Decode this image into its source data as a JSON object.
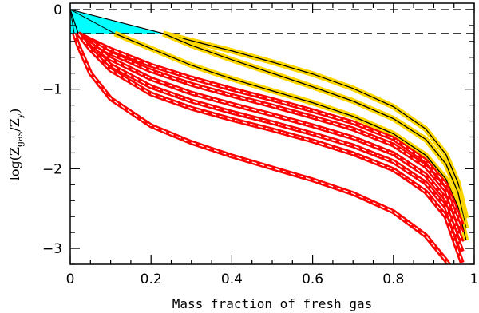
{
  "chart_data": {
    "type": "line",
    "xlabel": "Mass fraction of fresh gas",
    "ylabel": {
      "prefix": "log(Z",
      "sub1": "gas",
      "mid": "/Z",
      "sub2": "y",
      "suffix": ")"
    },
    "xlim": [
      0,
      1
    ],
    "ylim": [
      -3.2,
      0.08
    ],
    "xticks": [
      {
        "value": 0,
        "label": "0"
      },
      {
        "value": 0.2,
        "label": "0.2"
      },
      {
        "value": 0.4,
        "label": "0.4"
      },
      {
        "value": 0.6,
        "label": "0.6"
      },
      {
        "value": 0.8,
        "label": "0.8"
      },
      {
        "value": 1,
        "label": "1"
      }
    ],
    "yticks": [
      {
        "value": 0,
        "label": "0"
      },
      {
        "value": -1,
        "label": "−1"
      },
      {
        "value": -2,
        "label": "−2"
      },
      {
        "value": -3,
        "label": "−3"
      }
    ],
    "reference_lines": [
      0,
      -0.3
    ],
    "shaded_region": {
      "color": "#00ffff",
      "x_max": 0.23,
      "y_top": 0,
      "y_bottom": -0.3
    },
    "colors": {
      "red": "#ff0000",
      "yellow": "#ffd700",
      "cyan": "#00ffff",
      "core": "#ffffff"
    },
    "series": [
      {
        "color": "yellow",
        "x": [
          0.23,
          0.3,
          0.4,
          0.5,
          0.6,
          0.7,
          0.8,
          0.88,
          0.93,
          0.96,
          0.98
        ],
        "y": [
          -0.3,
          -0.39,
          -0.52,
          -0.66,
          -0.81,
          -0.99,
          -1.22,
          -1.5,
          -1.82,
          -2.18,
          -2.62
        ]
      },
      {
        "color": "yellow",
        "x": [
          0.23,
          0.3,
          0.4,
          0.5,
          0.6,
          0.7,
          0.8,
          0.88,
          0.93,
          0.96,
          0.98
        ],
        "y": [
          -0.3,
          -0.45,
          -0.63,
          -0.8,
          -0.97,
          -1.15,
          -1.37,
          -1.63,
          -1.94,
          -2.3,
          -2.75
        ]
      },
      {
        "color": "yellow",
        "x": [
          0.11,
          0.2,
          0.3,
          0.4,
          0.5,
          0.6,
          0.7,
          0.8,
          0.88,
          0.93,
          0.96,
          0.98
        ],
        "y": [
          -0.3,
          -0.49,
          -0.7,
          -0.87,
          -1.02,
          -1.17,
          -1.34,
          -1.56,
          -1.83,
          -2.13,
          -2.48,
          -2.9
        ]
      },
      {
        "color": "red",
        "x": [
          0.02,
          0.05,
          0.1,
          0.2,
          0.3,
          0.4,
          0.5,
          0.6,
          0.7,
          0.8,
          0.88,
          0.93,
          0.97
        ],
        "y": [
          -0.3,
          -0.38,
          -0.5,
          -0.7,
          -0.86,
          -1.0,
          -1.13,
          -1.27,
          -1.42,
          -1.62,
          -1.9,
          -2.2,
          -2.7
        ]
      },
      {
        "color": "red",
        "x": [
          0.02,
          0.05,
          0.1,
          0.2,
          0.3,
          0.4,
          0.5,
          0.6,
          0.7,
          0.8,
          0.88,
          0.93,
          0.97
        ],
        "y": [
          -0.3,
          -0.4,
          -0.55,
          -0.77,
          -0.94,
          -1.08,
          -1.21,
          -1.35,
          -1.5,
          -1.7,
          -1.97,
          -2.27,
          -2.8
        ]
      },
      {
        "color": "red",
        "x": [
          0.02,
          0.05,
          0.1,
          0.2,
          0.3,
          0.4,
          0.5,
          0.6,
          0.7,
          0.8,
          0.88,
          0.93,
          0.97
        ],
        "y": [
          -0.3,
          -0.43,
          -0.62,
          -0.87,
          -1.05,
          -1.19,
          -1.32,
          -1.46,
          -1.61,
          -1.81,
          -2.08,
          -2.38,
          -2.92
        ]
      },
      {
        "color": "red",
        "x": [
          0.02,
          0.05,
          0.1,
          0.2,
          0.3,
          0.4,
          0.5,
          0.6,
          0.7,
          0.8,
          0.88,
          0.93,
          0.97
        ],
        "y": [
          -0.3,
          -0.47,
          -0.7,
          -0.97,
          -1.15,
          -1.29,
          -1.42,
          -1.56,
          -1.71,
          -1.91,
          -2.18,
          -2.48,
          -3.04
        ]
      },
      {
        "color": "red",
        "x": [
          0.02,
          0.05,
          0.1,
          0.2,
          0.3,
          0.4,
          0.5,
          0.6,
          0.7,
          0.8,
          0.88,
          0.93,
          0.97
        ],
        "y": [
          -0.3,
          -0.5,
          -0.76,
          -1.06,
          -1.24,
          -1.38,
          -1.51,
          -1.65,
          -1.81,
          -2.01,
          -2.29,
          -2.6,
          -3.18
        ]
      },
      {
        "color": "red",
        "x": [
          0.01,
          0.02,
          0.05,
          0.1,
          0.2,
          0.3,
          0.4,
          0.5,
          0.6,
          0.7,
          0.8,
          0.88,
          0.93,
          0.96
        ],
        "y": [
          -0.3,
          -0.45,
          -0.8,
          -1.12,
          -1.46,
          -1.67,
          -1.84,
          -1.99,
          -2.14,
          -2.31,
          -2.54,
          -2.84,
          -3.15,
          -3.4
        ]
      }
    ]
  }
}
